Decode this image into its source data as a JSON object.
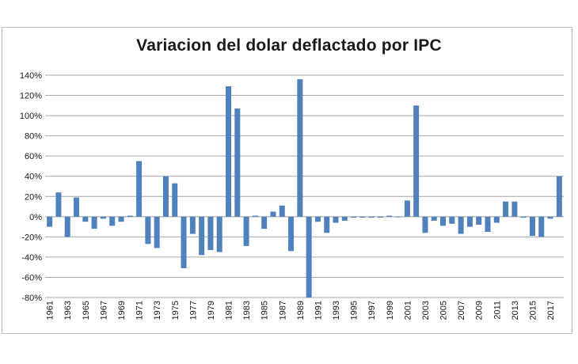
{
  "chart_data": {
    "type": "bar",
    "title": "Variacion del dolar deflactado por IPC",
    "xlabel": "",
    "ylabel": "",
    "ylim": [
      -80,
      140
    ],
    "y_ticks": [
      140,
      120,
      100,
      80,
      60,
      40,
      20,
      0,
      -20,
      -40,
      -60,
      -80
    ],
    "y_tick_labels": [
      "140%",
      "120%",
      "100%",
      "80%",
      "60%",
      "40%",
      "20%",
      "0%",
      "-20%",
      "-40%",
      "-60%",
      "-80%"
    ],
    "grid": true,
    "bar_color": "#4f81bd",
    "categories": [
      1961,
      1962,
      1963,
      1964,
      1965,
      1966,
      1967,
      1968,
      1969,
      1970,
      1971,
      1972,
      1973,
      1974,
      1975,
      1976,
      1977,
      1978,
      1979,
      1980,
      1981,
      1982,
      1983,
      1984,
      1985,
      1986,
      1987,
      1988,
      1989,
      1990,
      1991,
      1992,
      1993,
      1994,
      1995,
      1996,
      1997,
      1998,
      1999,
      2000,
      2001,
      2002,
      2003,
      2004,
      2005,
      2006,
      2007,
      2008,
      2009,
      2010,
      2011,
      2012,
      2013,
      2014,
      2015,
      2016,
      2017,
      2018
    ],
    "x_tick_labels": [
      "1961",
      "1963",
      "1965",
      "1967",
      "1969",
      "1971",
      "1973",
      "1975",
      "1977",
      "1979",
      "1981",
      "1983",
      "1985",
      "1987",
      "1989",
      "1991",
      "1993",
      "1995",
      "1997",
      "1999",
      "2001",
      "2003",
      "2005",
      "2007",
      "2009",
      "2011",
      "2013",
      "2015",
      "2017"
    ],
    "values": [
      -10,
      24,
      -20,
      19,
      -5,
      -12,
      -2,
      -9,
      -5,
      1,
      55,
      -27,
      -31,
      40,
      33,
      -51,
      -17,
      -38,
      -33,
      -35,
      129,
      107,
      -29,
      1,
      -12,
      5,
      11,
      -34,
      136,
      -80,
      -5,
      -16,
      -6,
      -4,
      -1,
      -1,
      -1,
      -1,
      1,
      0,
      16,
      110,
      -16,
      -4,
      -9,
      -7,
      -17,
      -10,
      -8,
      -15,
      -6,
      15,
      15,
      -1,
      -19,
      -20,
      -2,
      40
    ]
  }
}
